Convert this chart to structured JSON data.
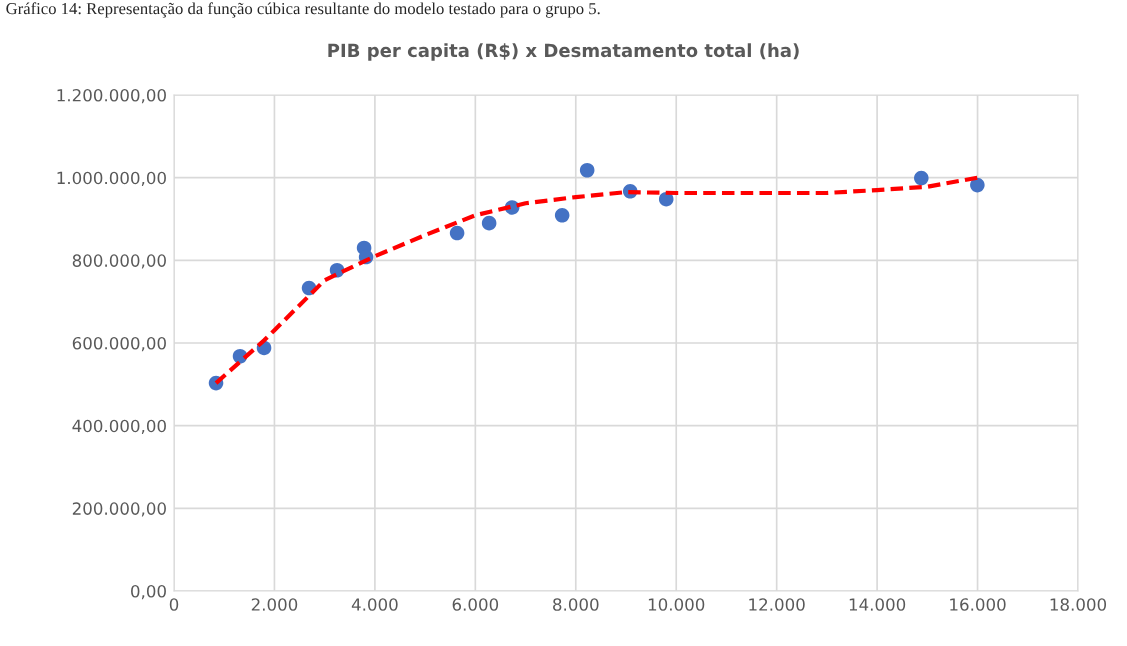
{
  "chart_data": {
    "type": "scatter",
    "title": "PIB per capita (R$) x Desmatamento total (ha)",
    "annotations": [
      "Gráfico 14: Representação da função cúbica resultante do modelo testado para o grupo 5."
    ],
    "series": [
      {
        "color": "#4472c4",
        "marker": "circle",
        "x": [
          837,
          1315,
          1793,
          2689,
          3247,
          3785,
          3825,
          5637,
          6275,
          6733,
          7729,
          8227,
          9084,
          9801,
          14880,
          15996
        ],
        "values": [
          503000,
          568000,
          588000,
          733000,
          776000,
          830000,
          808000,
          866000,
          890000,
          928000,
          909000,
          1018000,
          967000,
          948000,
          999000,
          982000
        ]
      },
      {
        "type": "line",
        "color": "#ff0000",
        "line_style": "dashed",
        "marker": "none",
        "x": [
          837,
          1800,
          2000,
          3000,
          4000,
          5000,
          6000,
          7000,
          8000,
          9000,
          10000,
          11000,
          12000,
          13000,
          14000,
          15000,
          16000
        ],
        "values": [
          503000,
          607000,
          631000,
          752000,
          810000,
          861000,
          909000,
          938000,
          953000,
          965000,
          963000,
          963000,
          963000,
          963000,
          970000,
          978000,
          1000000
        ]
      }
    ],
    "xlim": [
      0,
      18000
    ],
    "xticks": [
      0,
      {
        "value": 2000,
        "label": "2.000"
      },
      {
        "value": 4000,
        "label": "4.000"
      },
      {
        "value": 6000,
        "label": "6.000"
      },
      {
        "value": 8000,
        "label": "8.000"
      },
      {
        "value": 10000,
        "label": "10.000"
      },
      {
        "value": 12000,
        "label": "12.000"
      },
      {
        "value": 14000,
        "label": "14.000"
      },
      {
        "value": 16000,
        "label": "16.000"
      },
      {
        "value": 18000,
        "label": "18.000"
      }
    ],
    "ylim": [
      0,
      1200000
    ],
    "yticks": [
      {
        "value": 0,
        "label": "0,00"
      },
      {
        "value": 200000,
        "label": "200.000,00"
      },
      {
        "value": 400000,
        "label": "400.000,00"
      },
      {
        "value": 600000,
        "label": "600.000,00"
      },
      {
        "value": 800000,
        "label": "800.000,00"
      },
      {
        "value": 1000000,
        "label": "1.000.000,00"
      },
      {
        "value": 1200000,
        "label": "1.200.000,00"
      }
    ],
    "grid": true,
    "legend": false
  }
}
